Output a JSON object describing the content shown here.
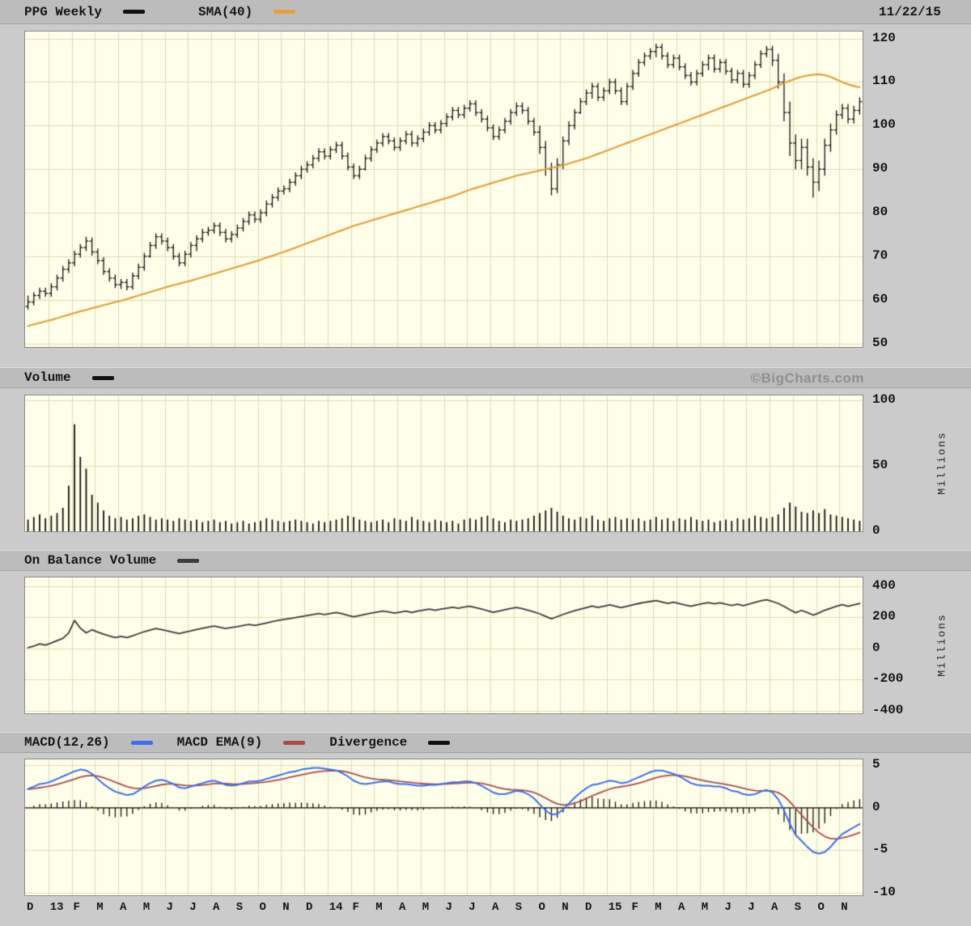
{
  "price_panel": {
    "title": "PPG Weekly",
    "sma_label": "SMA(40)",
    "date": "11/22/15"
  },
  "volume_panel": {
    "title": "Volume",
    "watermark": "©BigCharts.com",
    "unit_label": "Millions"
  },
  "obv_panel": {
    "title": "On Balance Volume",
    "unit_label": "Millions"
  },
  "macd_panel": {
    "title": "MACD(12,26)",
    "ema_label": "MACD EMA(9)",
    "divergence_label": "Divergence"
  },
  "colors": {
    "page_bg": "#cbcbcb",
    "strip_bg": "#bcbcbc",
    "panel_bg": "#ffffe9",
    "grid": "#deddb2",
    "price_bar": "#111111",
    "sma_line": "#e2a33c",
    "volume_bar": "#111111",
    "obv_line": "#3c3c3c",
    "macd_line": "#3a6ff0",
    "macd_ema_line": "#a84c4c",
    "divergence_bar": "#111111",
    "zero_line": "#111111",
    "watermark": "#8f8f8f"
  },
  "chart_data": {
    "type": "multi-panel-timeseries",
    "symbol": "PPG",
    "interval": "Weekly",
    "as_of_date": "11/22/15",
    "x_axis": {
      "labels": [
        "D",
        "13",
        "F",
        "M",
        "A",
        "M",
        "J",
        "J",
        "A",
        "S",
        "O",
        "N",
        "D",
        "14",
        "F",
        "M",
        "A",
        "M",
        "J",
        "J",
        "A",
        "S",
        "O",
        "N",
        "D",
        "15",
        "F",
        "M",
        "A",
        "M",
        "J",
        "J",
        "A",
        "S",
        "O",
        "N"
      ],
      "weeks_per_month": 4
    },
    "price": {
      "type": "ohlc",
      "label": "PPG Weekly",
      "overlay": "SMA(40)",
      "ylim": [
        49.2,
        121.6
      ],
      "yticks": [
        120,
        110,
        100,
        90,
        80,
        70,
        60,
        50
      ],
      "high": [
        61,
        61.8,
        62.8,
        62.8,
        63.8,
        65.8,
        67.8,
        69.3,
        71.3,
        72.8,
        74.5,
        74.3,
        71.8,
        69.8,
        67.3,
        65.8,
        64.8,
        64.8,
        66.3,
        68.3,
        70.8,
        73.3,
        75.3,
        75.3,
        74.3,
        72.8,
        70.8,
        71.3,
        73.3,
        74.8,
        76.3,
        76.8,
        77.8,
        77.8,
        76.3,
        75.8,
        77.3,
        78.8,
        80.3,
        80.3,
        80.8,
        82.8,
        84.3,
        85.8,
        86.3,
        87.8,
        89.3,
        90.8,
        91.8,
        93.3,
        94.8,
        94.8,
        95.3,
        96.3,
        96.3,
        93.8,
        91.3,
        90.8,
        93.3,
        95.3,
        96.8,
        98.3,
        98.3,
        97.3,
        97.3,
        98.8,
        98.8,
        97.8,
        99.3,
        100.8,
        100.8,
        101.3,
        102.8,
        104.3,
        104.3,
        104.8,
        105.8,
        105.8,
        103.8,
        102.3,
        100.3,
        99.8,
        101.8,
        103.8,
        105.3,
        105.3,
        104.3,
        101.8,
        100,
        96.5,
        91.5,
        92.5,
        97.5,
        101,
        103.8,
        106.3,
        108.3,
        109.8,
        109.8,
        108.8,
        110.8,
        110.8,
        108.8,
        109.8,
        112.8,
        115.3,
        116.8,
        117.8,
        118.8,
        118.8,
        116.8,
        116.3,
        116.3,
        114.3,
        112.3,
        112.8,
        114.8,
        116.3,
        116.3,
        115.3,
        115.3,
        113.3,
        112.8,
        112.8,
        112.3,
        114.8,
        117.3,
        118.3,
        118.3,
        116.5,
        112,
        105.5,
        98,
        97,
        97,
        92.5,
        92,
        97,
        100.5,
        103.5,
        105,
        105,
        104.5,
        106.5
      ],
      "low": [
        57.8,
        58.7,
        60.2,
        60.7,
        60.7,
        62.2,
        64.2,
        66.2,
        67.7,
        69.7,
        71.2,
        70.2,
        68.2,
        65.7,
        64.2,
        62.7,
        62.5,
        62.2,
        62.4,
        64.7,
        66.7,
        69.7,
        71.7,
        72.7,
        71.2,
        69.2,
        67.7,
        67.7,
        69.7,
        71.2,
        73.2,
        74.7,
        75.2,
        74.7,
        73.2,
        73.2,
        74.2,
        75.7,
        77.2,
        77.7,
        77.7,
        79.2,
        81.2,
        82.7,
        84.2,
        84.7,
        86.2,
        87.7,
        89.2,
        90.2,
        91.7,
        92.2,
        92.2,
        93.7,
        92.2,
        89.7,
        87.7,
        87.7,
        89.7,
        91.7,
        93.7,
        95.2,
        95.7,
        94.2,
        94.2,
        95.7,
        95.2,
        95.2,
        96.2,
        97.7,
        98.2,
        98.2,
        99.7,
        101.2,
        101.7,
        101.7,
        103.2,
        102.2,
        100.7,
        98.7,
        96.7,
        96.7,
        98.2,
        100.2,
        102.2,
        102.7,
        100.2,
        97.7,
        93.5,
        88.5,
        84,
        84.5,
        90,
        95.5,
        99.2,
        102.7,
        104.7,
        106.2,
        105.7,
        105.7,
        107.2,
        107.2,
        104.7,
        104.7,
        108.2,
        111.2,
        113.7,
        115.2,
        115.7,
        115.2,
        113.2,
        113.2,
        112.7,
        110.7,
        109.2,
        109.2,
        111.2,
        112.7,
        112.2,
        112.2,
        111.7,
        109.7,
        109.7,
        108.7,
        108.7,
        110.7,
        113.2,
        115.7,
        113.7,
        108.5,
        101,
        93,
        90,
        90,
        88.5,
        83.5,
        85,
        88.5,
        94,
        98,
        101.5,
        100.5,
        100.5,
        102.5
      ],
      "close": [
        59.5,
        61,
        62,
        61.5,
        63,
        65,
        67,
        68.5,
        70.5,
        72,
        73.5,
        71,
        69,
        66.5,
        65,
        63.5,
        64,
        63,
        65.5,
        67.5,
        70,
        72.5,
        74.5,
        73.5,
        72,
        70,
        68.5,
        70.5,
        72.5,
        74,
        75.5,
        76,
        77,
        75.5,
        74,
        75,
        76.5,
        78,
        79.5,
        78.5,
        80,
        82,
        83.5,
        85,
        85.5,
        87,
        88.5,
        90,
        91,
        92.5,
        94,
        93,
        94.5,
        95.5,
        93,
        90.5,
        88.5,
        90,
        92.5,
        94.5,
        96,
        97.5,
        96.5,
        95,
        96.5,
        98,
        96,
        97,
        98.5,
        100,
        99,
        100.5,
        102,
        103.5,
        102.5,
        104,
        105,
        103,
        101.5,
        99.5,
        97.5,
        99,
        101,
        103,
        104.5,
        103.5,
        101,
        98.5,
        95,
        90,
        85.5,
        91,
        96.5,
        100,
        103,
        105.5,
        107.5,
        109,
        106.5,
        108,
        110,
        108,
        105.5,
        109,
        112,
        114.5,
        116,
        117,
        118,
        116,
        114,
        115.5,
        113.5,
        111.5,
        110,
        112,
        114,
        115.5,
        113,
        114.5,
        112.5,
        110.5,
        112,
        109.5,
        111.5,
        114,
        116.5,
        117.5,
        115,
        110,
        103,
        96,
        92,
        95,
        90.5,
        87,
        90,
        95.5,
        99,
        102.5,
        104,
        101.5,
        103.5,
        105.5
      ],
      "sma40": [
        54,
        54.4,
        54.7,
        55.1,
        55.4,
        55.8,
        56.2,
        56.6,
        57,
        57.4,
        57.7,
        58.1,
        58.4,
        58.8,
        59.1,
        59.5,
        59.8,
        60.2,
        60.6,
        61,
        61.4,
        61.8,
        62.2,
        62.6,
        63,
        63.4,
        63.7,
        64.1,
        64.4,
        64.8,
        65.2,
        65.6,
        66,
        66.4,
        66.8,
        67.2,
        67.6,
        68,
        68.4,
        68.8,
        69.2,
        69.7,
        70.1,
        70.6,
        71,
        71.5,
        72,
        72.5,
        73,
        73.5,
        74,
        74.5,
        75,
        75.5,
        76,
        76.5,
        77,
        77.4,
        77.8,
        78.2,
        78.6,
        79,
        79.4,
        79.8,
        80.2,
        80.6,
        81,
        81.4,
        81.8,
        82.2,
        82.6,
        83,
        83.4,
        83.8,
        84.3,
        84.8,
        85.3,
        85.7,
        86.1,
        86.5,
        86.9,
        87.3,
        87.7,
        88.1,
        88.5,
        88.8,
        89.1,
        89.4,
        89.7,
        90,
        90.3,
        90.6,
        90.9,
        91.3,
        91.7,
        92.1,
        92.5,
        93,
        93.5,
        94,
        94.5,
        95,
        95.5,
        96,
        96.5,
        97,
        97.5,
        98,
        98.5,
        99,
        99.5,
        100,
        100.5,
        101,
        101.5,
        102,
        102.5,
        103,
        103.5,
        104,
        104.5,
        105,
        105.5,
        106,
        106.5,
        107,
        107.5,
        108,
        108.5,
        109.2,
        109.8,
        110.3,
        110.8,
        111.2,
        111.5,
        111.7,
        111.8,
        111.6,
        111.2,
        110.6,
        110,
        109.5,
        109.1,
        108.8
      ]
    },
    "volume": {
      "type": "bar",
      "label": "Volume",
      "unit": "Millions",
      "ylim": [
        0,
        104
      ],
      "yticks": [
        100,
        50,
        0
      ],
      "values": [
        9,
        11,
        13,
        10,
        12,
        14,
        18,
        35,
        82,
        57,
        48,
        28,
        22,
        16,
        12,
        10,
        11,
        9,
        10,
        12,
        13,
        11,
        9,
        10,
        9,
        8,
        10,
        9,
        8,
        9,
        7,
        8,
        9,
        7,
        8,
        6,
        7,
        8,
        6,
        7,
        8,
        10,
        9,
        8,
        7,
        8,
        9,
        8,
        7,
        6,
        8,
        7,
        8,
        9,
        10,
        12,
        11,
        9,
        8,
        7,
        8,
        9,
        7,
        10,
        9,
        8,
        11,
        9,
        8,
        7,
        9,
        8,
        7,
        8,
        6,
        9,
        10,
        9,
        11,
        12,
        10,
        8,
        7,
        9,
        8,
        9,
        10,
        12,
        14,
        16,
        18,
        15,
        12,
        10,
        9,
        11,
        10,
        12,
        9,
        8,
        10,
        11,
        9,
        10,
        9,
        10,
        8,
        9,
        11,
        9,
        10,
        8,
        10,
        9,
        11,
        9,
        8,
        9,
        7,
        8,
        9,
        8,
        10,
        9,
        10,
        12,
        11,
        10,
        11,
        13,
        18,
        22,
        19,
        15,
        14,
        16,
        14,
        17,
        13,
        12,
        11,
        10,
        9,
        8
      ]
    },
    "obv": {
      "type": "line",
      "label": "On Balance Volume",
      "unit": "Millions",
      "ylim": [
        -415,
        455
      ],
      "yticks": [
        400,
        200,
        0,
        -200,
        -400
      ],
      "values": [
        5,
        15,
        30,
        22,
        35,
        50,
        65,
        100,
        180,
        130,
        100,
        120,
        105,
        92,
        80,
        70,
        78,
        70,
        82,
        95,
        108,
        118,
        128,
        120,
        112,
        104,
        96,
        105,
        113,
        122,
        129,
        137,
        144,
        136,
        128,
        134,
        140,
        148,
        154,
        147,
        155,
        163,
        172,
        180,
        186,
        192,
        198,
        205,
        211,
        217,
        224,
        218,
        224,
        230,
        222,
        212,
        203,
        211,
        219,
        226,
        233,
        240,
        234,
        226,
        233,
        240,
        231,
        239,
        246,
        252,
        245,
        252,
        258,
        264,
        258,
        265,
        271,
        262,
        253,
        242,
        232,
        240,
        248,
        256,
        263,
        255,
        245,
        234,
        222,
        206,
        190,
        204,
        218,
        230,
        242,
        252,
        262,
        272,
        263,
        271,
        280,
        270,
        261,
        271,
        280,
        288,
        295,
        301,
        307,
        298,
        289,
        296,
        287,
        278,
        270,
        279,
        287,
        294,
        286,
        293,
        284,
        276,
        284,
        275,
        285,
        295,
        305,
        312,
        301,
        288,
        270,
        248,
        229,
        244,
        230,
        214,
        228,
        245,
        258,
        270,
        281,
        271,
        280,
        288
      ]
    },
    "macd": {
      "type": "line+histogram",
      "label": "MACD(12,26)",
      "ema_label": "MACD EMA(9)",
      "histogram_label": "Divergence",
      "ema_period": 9,
      "ylim": [
        -10.3,
        5.7
      ],
      "yticks": [
        5,
        0,
        -5,
        -10
      ],
      "macd": [
        2.2,
        2.5,
        2.8,
        2.9,
        3.1,
        3.4,
        3.7,
        4,
        4.3,
        4.5,
        4.4,
        4,
        3.4,
        2.8,
        2.3,
        1.9,
        1.7,
        1.5,
        1.6,
        2,
        2.5,
        2.9,
        3.2,
        3.3,
        3.1,
        2.8,
        2.4,
        2.3,
        2.5,
        2.7,
        2.9,
        3.1,
        3.2,
        3,
        2.7,
        2.6,
        2.7,
        2.9,
        3.1,
        3.1,
        3.2,
        3.4,
        3.6,
        3.8,
        4,
        4.2,
        4.3,
        4.5,
        4.6,
        4.7,
        4.7,
        4.6,
        4.5,
        4.4,
        4.1,
        3.7,
        3.2,
        2.9,
        2.8,
        2.9,
        3,
        3.1,
        3.1,
        2.9,
        2.8,
        2.8,
        2.7,
        2.6,
        2.6,
        2.7,
        2.7,
        2.8,
        2.9,
        3,
        3,
        3.1,
        3.1,
        2.9,
        2.6,
        2.2,
        1.8,
        1.6,
        1.6,
        1.8,
        2,
        1.9,
        1.6,
        1.1,
        0.4,
        -0.3,
        -0.8,
        -0.7,
        -0.2,
        0.5,
        1.2,
        1.8,
        2.3,
        2.7,
        2.8,
        3,
        3.2,
        3.1,
        2.9,
        3,
        3.3,
        3.6,
        3.9,
        4.2,
        4.4,
        4.4,
        4.2,
        4,
        3.7,
        3.3,
        2.9,
        2.7,
        2.6,
        2.6,
        2.5,
        2.5,
        2.3,
        2,
        1.9,
        1.6,
        1.5,
        1.6,
        1.9,
        2.1,
        1.8,
        1,
        -0.3,
        -1.9,
        -3.2,
        -3.9,
        -4.6,
        -5.2,
        -5.4,
        -5.2,
        -4.6,
        -3.8,
        -3.1,
        -2.7,
        -2.3,
        -1.9
      ]
    }
  }
}
